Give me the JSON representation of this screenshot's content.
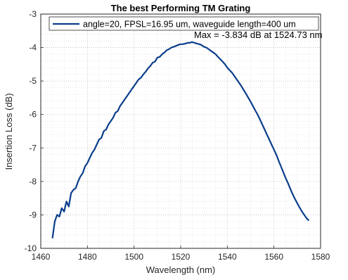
{
  "chart_data": {
    "type": "line",
    "title": "The best Performing TM Grating",
    "xlabel": "Wavelength (nm)",
    "ylabel": "Insertion Loss (dB)",
    "xlim": [
      1460,
      1580
    ],
    "ylim": [
      -10,
      -3
    ],
    "xticks": [
      1460,
      1480,
      1500,
      1520,
      1540,
      1560,
      1580
    ],
    "yticks": [
      -10,
      -9,
      -8,
      -7,
      -6,
      -5,
      -4,
      -3
    ],
    "grid": "dotted, major and minor",
    "legend_position": "top",
    "annotation": "Max = -3.834 dB at 1524.73 nm",
    "series": [
      {
        "name": "angle=20, FPSL=16.95 um, waveguide length=400 um",
        "color": "#0b3e8c",
        "x": [
          1465.0,
          1466.0,
          1467.0,
          1468.0,
          1469.0,
          1470.0,
          1471.0,
          1472.0,
          1473.0,
          1474.0,
          1475.0,
          1476.0,
          1477.0,
          1478.0,
          1479.0,
          1480.0,
          1481.0,
          1482.0,
          1483.0,
          1484.0,
          1485.0,
          1486.0,
          1487.0,
          1488.0,
          1489.0,
          1490.0,
          1491.0,
          1492.0,
          1493.0,
          1494.0,
          1495.0,
          1496.0,
          1497.0,
          1498.0,
          1499.0,
          1500.0,
          1501.0,
          1502.0,
          1503.0,
          1504.0,
          1505.0,
          1506.0,
          1507.0,
          1508.0,
          1509.0,
          1510.0,
          1511.0,
          1512.0,
          1513.0,
          1514.0,
          1515.0,
          1516.0,
          1517.0,
          1518.0,
          1519.0,
          1520.0,
          1521.0,
          1522.0,
          1523.0,
          1524.0,
          1524.73,
          1526.0,
          1527.0,
          1528.0,
          1529.0,
          1530.0,
          1531.0,
          1532.0,
          1533.0,
          1534.0,
          1535.0,
          1536.0,
          1537.0,
          1538.0,
          1539.0,
          1540.0,
          1541.0,
          1542.0,
          1543.0,
          1544.0,
          1545.0,
          1546.0,
          1547.0,
          1548.0,
          1549.0,
          1550.0,
          1551.0,
          1552.0,
          1553.0,
          1554.0,
          1555.0,
          1556.0,
          1557.0,
          1558.0,
          1559.0,
          1560.0,
          1561.0,
          1562.0,
          1563.0,
          1564.0,
          1565.0,
          1566.0,
          1567.0,
          1568.0,
          1569.0,
          1570.0,
          1571.0,
          1572.0,
          1573.0,
          1574.0,
          1575.0
        ],
        "y": [
          -9.7,
          -9.2,
          -9.0,
          -9.05,
          -8.8,
          -8.9,
          -8.6,
          -8.75,
          -8.35,
          -8.25,
          -8.2,
          -8.0,
          -7.85,
          -7.75,
          -7.55,
          -7.45,
          -7.3,
          -7.15,
          -7.05,
          -6.9,
          -6.75,
          -6.7,
          -6.5,
          -6.45,
          -6.3,
          -6.2,
          -6.1,
          -5.95,
          -5.9,
          -5.75,
          -5.65,
          -5.55,
          -5.45,
          -5.35,
          -5.25,
          -5.15,
          -5.05,
          -4.95,
          -4.9,
          -4.8,
          -4.72,
          -4.62,
          -4.55,
          -4.45,
          -4.42,
          -4.3,
          -4.28,
          -4.2,
          -4.15,
          -4.08,
          -4.05,
          -4.0,
          -3.98,
          -3.95,
          -3.92,
          -3.9,
          -3.9,
          -3.88,
          -3.86,
          -3.86,
          -3.834,
          -3.86,
          -3.88,
          -3.9,
          -3.93,
          -3.98,
          -4.0,
          -4.05,
          -4.1,
          -4.15,
          -4.2,
          -4.28,
          -4.35,
          -4.42,
          -4.5,
          -4.6,
          -4.68,
          -4.75,
          -4.85,
          -4.95,
          -5.05,
          -5.15,
          -5.27,
          -5.38,
          -5.5,
          -5.62,
          -5.75,
          -5.88,
          -6.0,
          -6.15,
          -6.3,
          -6.45,
          -6.6,
          -6.75,
          -6.9,
          -7.05,
          -7.2,
          -7.38,
          -7.55,
          -7.72,
          -7.9,
          -8.05,
          -8.22,
          -8.38,
          -8.52,
          -8.65,
          -8.78,
          -8.9,
          -9.0,
          -9.1,
          -9.17
        ]
      }
    ]
  }
}
